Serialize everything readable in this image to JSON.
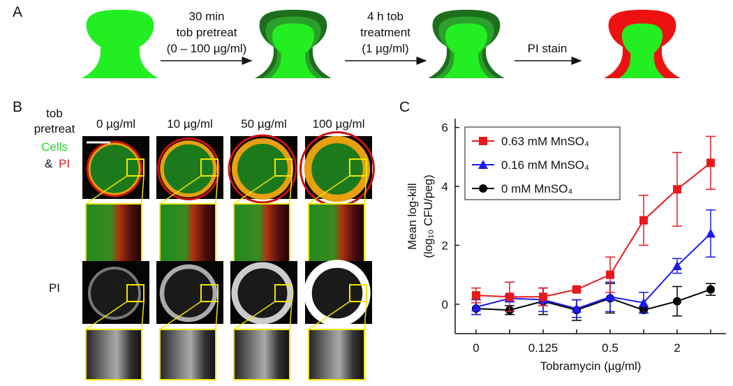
{
  "panel_a": {
    "label": "A",
    "steps": [
      [
        "30 min",
        "tob pretreat",
        "(0 – 100 µg/ml)"
      ],
      [
        "4 h tob",
        "treatment",
        "(1 µg/ml)"
      ],
      [
        "PI stain"
      ]
    ]
  },
  "panel_b": {
    "label": "B",
    "row_header": [
      "tob",
      "pretreat"
    ],
    "columns": [
      "0 µg/ml",
      "10 µg/ml",
      "50 µg/ml",
      "100 µg/ml"
    ],
    "merge_label": [
      "Cells",
      "&",
      "PI"
    ],
    "pi_label": "PI"
  },
  "chart_data": {
    "type": "line",
    "label": "C",
    "y_label": [
      "Mean log-kill",
      "(log₁₀ CFU/peg)"
    ],
    "x_label": "Tobramycin (µg/ml)",
    "categories": [
      "0",
      null,
      "0.125",
      null,
      "0.5",
      null,
      "2",
      null
    ],
    "ylim": [
      -1,
      6.3
    ],
    "yticks": [
      0,
      2,
      4,
      6
    ],
    "series": [
      {
        "name": "0.63 mM MnSO₄",
        "color": "#e8191c",
        "marker": "square",
        "values": [
          0.3,
          0.25,
          0.25,
          0.5,
          1.0,
          2.85,
          3.9,
          4.8
        ],
        "errors": [
          0.25,
          0.5,
          0.3,
          0.05,
          0.6,
          0.85,
          1.25,
          0.9
        ]
      },
      {
        "name": "0.16 mM MnSO₄",
        "color": "#1a1aef",
        "marker": "triangle",
        "values": [
          -0.1,
          0.2,
          0.15,
          -0.15,
          0.25,
          0.05,
          1.3,
          2.4
        ],
        "errors": [
          0.25,
          0.1,
          0.4,
          0.3,
          0.5,
          0.35,
          0.25,
          0.8
        ]
      },
      {
        "name": "0 mM MnSO₄",
        "color": "#000000",
        "marker": "circle",
        "values": [
          -0.15,
          -0.2,
          0.1,
          -0.2,
          0.2,
          -0.2,
          0.1,
          0.5
        ],
        "errors": [
          0.2,
          0.15,
          0.45,
          0.35,
          0.5,
          0.1,
          0.5,
          0.2
        ]
      }
    ]
  }
}
